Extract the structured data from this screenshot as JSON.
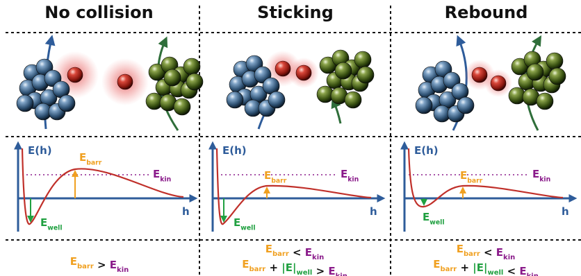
{
  "columns": [
    {
      "title": "No collision",
      "axis": {
        "y_label": "E(h)",
        "x_label": "h"
      },
      "labels": {
        "barr": {
          "E": "E",
          "sub": "barr"
        },
        "kin": {
          "E": "E",
          "sub": "kin"
        },
        "well": {
          "E": "E",
          "sub": "well"
        }
      },
      "condition_lines": [
        {
          "parts": [
            {
              "t": "E",
              "sub": "barr",
              "c": "barr"
            },
            {
              "t": " > ",
              "c": "op"
            },
            {
              "t": "E",
              "sub": "kin",
              "c": "kin"
            }
          ]
        }
      ]
    },
    {
      "title": "Sticking",
      "axis": {
        "y_label": "E(h)",
        "x_label": "h"
      },
      "labels": {
        "barr": {
          "E": "E",
          "sub": "barr"
        },
        "kin": {
          "E": "E",
          "sub": "kin"
        },
        "well": {
          "E": "E",
          "sub": "well"
        }
      },
      "condition_lines": [
        {
          "parts": [
            {
              "t": "E",
              "sub": "barr",
              "c": "barr"
            },
            {
              "t": " < ",
              "c": "op"
            },
            {
              "t": "E",
              "sub": "kin",
              "c": "kin"
            }
          ]
        },
        {
          "parts": [
            {
              "t": "E",
              "sub": "barr",
              "c": "barr"
            },
            {
              "t": " + ",
              "c": "op"
            },
            {
              "t": "|E|",
              "sub": "well",
              "c": "well"
            },
            {
              "t": " > ",
              "c": "op"
            },
            {
              "t": "E",
              "sub": "kin",
              "c": "kin"
            }
          ]
        }
      ]
    },
    {
      "title": "Rebound",
      "axis": {
        "y_label": "E(h)",
        "x_label": "h"
      },
      "labels": {
        "barr": {
          "E": "E",
          "sub": "barr"
        },
        "kin": {
          "E": "E",
          "sub": "kin"
        },
        "well": {
          "E": "E",
          "sub": "well"
        }
      },
      "condition_lines": [
        {
          "parts": [
            {
              "t": "E",
              "sub": "barr",
              "c": "barr"
            },
            {
              "t": " < ",
              "c": "op"
            },
            {
              "t": "E",
              "sub": "kin",
              "c": "kin"
            }
          ]
        },
        {
          "parts": [
            {
              "t": "E",
              "sub": "barr",
              "c": "barr"
            },
            {
              "t": " + ",
              "c": "op"
            },
            {
              "t": "|E|",
              "sub": "well",
              "c": "well"
            },
            {
              "t": " < ",
              "c": "op"
            },
            {
              "t": "E",
              "sub": "kin",
              "c": "kin"
            }
          ]
        }
      ]
    }
  ],
  "colors": {
    "barr": "#f0a020",
    "kin": "#8a1a8a",
    "well": "#20a040",
    "op": "#111111",
    "axis": "#2e5c9a",
    "curve": "#c0302a",
    "blue_sphere": "#3a5f86",
    "green_sphere": "#3f5a16",
    "red_sphere": "#c0281f"
  }
}
